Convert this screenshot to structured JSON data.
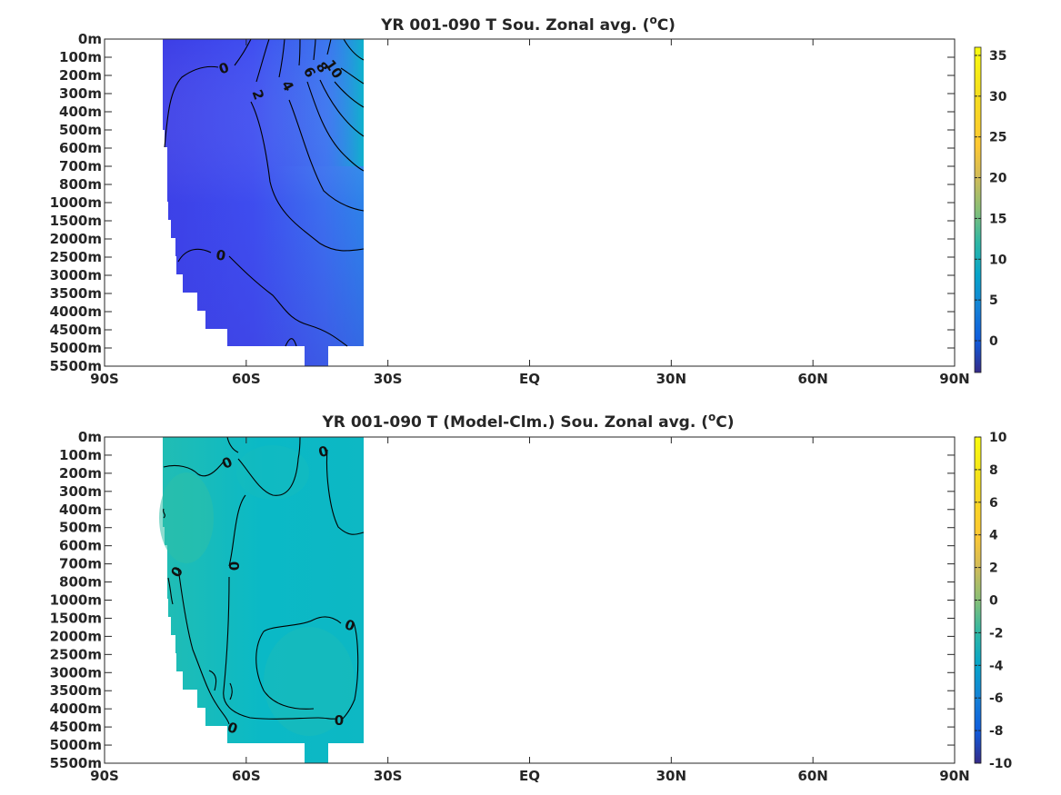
{
  "chart_data": [
    {
      "type": "heatmap",
      "title_main": "YR 001-090 T Sou. Zonal avg. (",
      "title_sup": "o",
      "title_end": "C)",
      "x_ticks": [
        "90S",
        "60S",
        "30S",
        "EQ",
        "30N",
        "60N",
        "90N"
      ],
      "x_values": [
        -90,
        -60,
        -30,
        0,
        30,
        60,
        90
      ],
      "y_ticks": [
        "0m",
        "100m",
        "200m",
        "300m",
        "400m",
        "500m",
        "600m",
        "700m",
        "800m",
        "1000m",
        "1500m",
        "2000m",
        "2500m",
        "3000m",
        "3500m",
        "4000m",
        "4500m",
        "5000m",
        "5500m"
      ],
      "xlim": [
        -90,
        90
      ],
      "colorbar": {
        "min": -3.9,
        "max": 36,
        "ticks": [
          0,
          5,
          10,
          15,
          20,
          25,
          30,
          35
        ]
      },
      "ocean_extent": {
        "lat_min": -78,
        "lat_max": -35
      },
      "contour_labels": [
        "0",
        "2",
        "4",
        "6",
        "8",
        "10",
        "0"
      ],
      "field_range": {
        "min": -1.8,
        "max": 13
      }
    },
    {
      "type": "heatmap",
      "title_main": "YR 001-090 T (Model-Clm.) Sou. Zonal avg. (",
      "title_sup": "o",
      "title_end": "C)",
      "x_ticks": [
        "90S",
        "60S",
        "30S",
        "EQ",
        "30N",
        "60N",
        "90N"
      ],
      "x_values": [
        -90,
        -60,
        -30,
        0,
        30,
        60,
        90
      ],
      "y_ticks": [
        "0m",
        "100m",
        "200m",
        "300m",
        "400m",
        "500m",
        "600m",
        "700m",
        "800m",
        "1000m",
        "1500m",
        "2000m",
        "2500m",
        "3000m",
        "3500m",
        "4000m",
        "4500m",
        "5000m",
        "5500m"
      ],
      "xlim": [
        -90,
        90
      ],
      "colorbar": {
        "min": -10,
        "max": 10,
        "ticks": [
          10,
          8,
          6,
          4,
          2,
          0,
          -2,
          -4,
          -6,
          -8,
          -10
        ]
      },
      "ocean_extent": {
        "lat_min": -78,
        "lat_max": -35
      },
      "contour_labels": [
        "0",
        "0",
        "0",
        "0",
        "0",
        "0",
        "0"
      ],
      "field_range": {
        "min": -1,
        "max": 1.5
      }
    }
  ]
}
